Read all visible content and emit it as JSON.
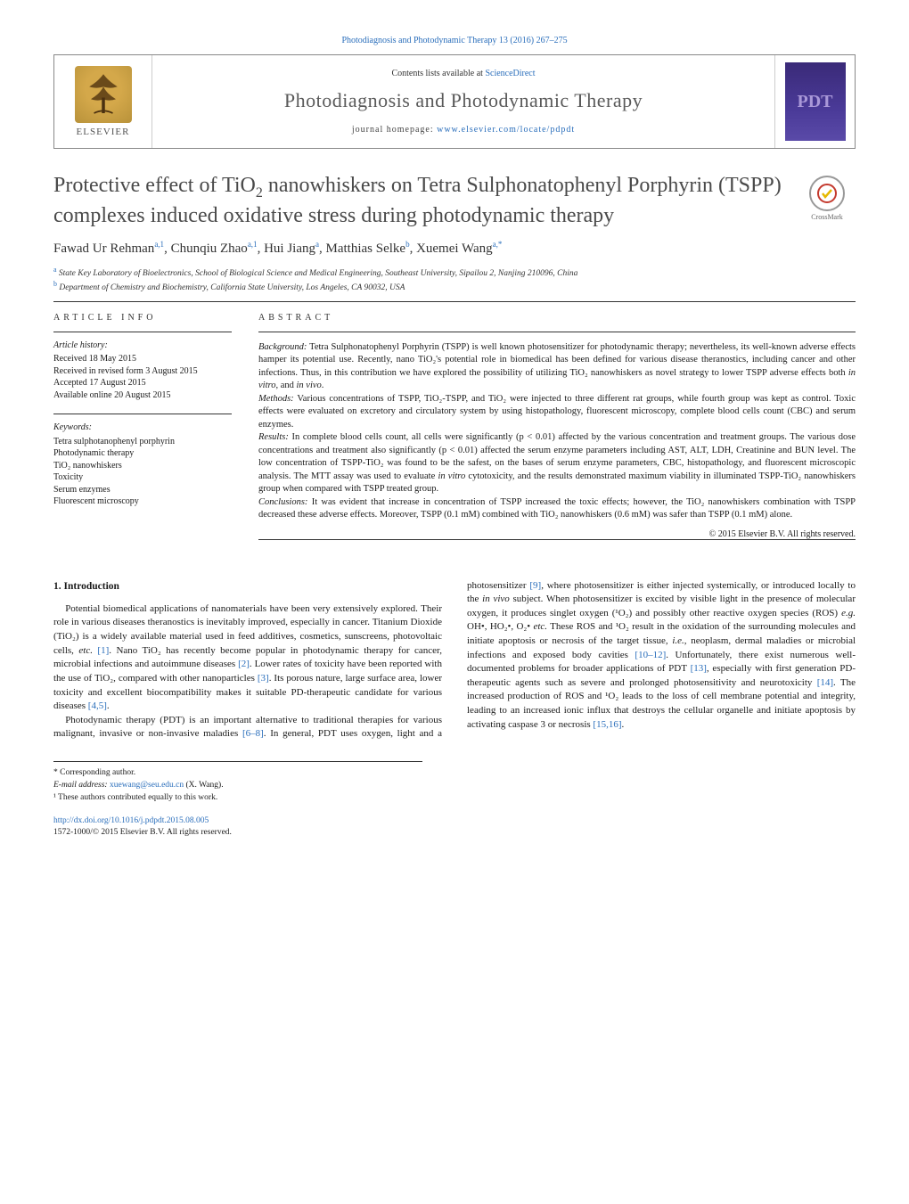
{
  "colors": {
    "link": "#2a6ebb",
    "title_gray": "#4a4a4a",
    "body_text": "#1a1a1a",
    "rule": "#333333",
    "elsevier_gold_a": "#d4a84a",
    "elsevier_gold_b": "#b8923a",
    "cover_purple_a": "#3a2a78",
    "cover_purple_b": "#5a4aa8",
    "masthead_border": "#888888"
  },
  "top_citation": "Photodiagnosis and Photodynamic Therapy 13 (2016) 267–275",
  "masthead": {
    "publisher": "ELSEVIER",
    "contents_prefix": "Contents lists available at ",
    "contents_link_text": "ScienceDirect",
    "journal_title": "Photodiagnosis and Photodynamic Therapy",
    "homepage_prefix": "journal homepage: ",
    "homepage_link_text": "www.elsevier.com/locate/pdpdt",
    "cover_letters": "PDT"
  },
  "article": {
    "title_html": "Protective effect of TiO<sub>2</sub> nanowhiskers on Tetra Sulphonatophenyl Porphyrin (TSPP) complexes induced oxidative stress during photodynamic therapy",
    "crossmark_label": "CrossMark",
    "authors_html": "Fawad Ur Rehman<sup>a,1</sup>, Chunqiu Zhao<sup>a,1</sup>, Hui Jiang<sup>a</sup>, Matthias Selke<sup>b</sup>, Xuemei Wang<sup>a,*</sup>",
    "affiliations": [
      {
        "tag": "a",
        "text": "State Key Laboratory of Bioelectronics, School of Biological Science and Medical Engineering, Southeast University, Sipailou 2, Nanjing 210096, China"
      },
      {
        "tag": "b",
        "text": "Department of Chemistry and Biochemistry, California State University, Los Angeles, CA 90032, USA"
      }
    ]
  },
  "info": {
    "heading": "article info",
    "history_label": "Article history:",
    "history": [
      "Received 18 May 2015",
      "Received in revised form 3 August 2015",
      "Accepted 17 August 2015",
      "Available online 20 August 2015"
    ],
    "keywords_label": "Keywords:",
    "keywords": [
      "Tetra sulphotanophenyl porphyrin",
      "Photodynamic therapy",
      "TiO₂ nanowhiskers",
      "Toxicity",
      "Serum enzymes",
      "Fluorescent microscopy"
    ]
  },
  "abstract": {
    "heading": "abstract",
    "background_label": "Background:",
    "background_text": "Tetra Sulphonatophenyl Porphyrin (TSPP) is well known photosensitizer for photodynamic therapy; nevertheless, its well-known adverse effects hamper its potential use. Recently, nano TiO₂'s potential role in biomedical has been defined for various disease theranostics, including cancer and other infections. Thus, in this contribution we have explored the possibility of utilizing TiO₂ nanowhiskers as novel strategy to lower TSPP adverse effects both in vitro, and in vivo.",
    "methods_label": "Methods:",
    "methods_text": "Various concentrations of TSPP, TiO₂-TSPP, and TiO₂ were injected to three different rat groups, while fourth group was kept as control. Toxic effects were evaluated on excretory and circulatory system by using histopathology, fluorescent microscopy, complete blood cells count (CBC) and serum enzymes.",
    "results_label": "Results:",
    "results_text": "In complete blood cells count, all cells were significantly (p < 0.01) affected by the various concentration and treatment groups. The various dose concentrations and treatment also significantly (p < 0.01) affected the serum enzyme parameters including AST, ALT, LDH, Creatinine and BUN level. The low concentration of TSPP-TiO₂ was found to be the safest, on the bases of serum enzyme parameters, CBC, histopathology, and fluorescent microscopic analysis. The MTT assay was used to evaluate in vitro cytotoxicity, and the results demonstrated maximum viability in illuminated TSPP-TiO₂ nanowhiskers group when compared with TSPP treated group.",
    "conclusions_label": "Conclusions:",
    "conclusions_text": "It was evident that increase in concentration of TSPP increased the toxic effects; however, the TiO₂ nanowhiskers combination with TSPP decreased these adverse effects. Moreover, TSPP (0.1 mM) combined with TiO₂ nanowhiskers (0.6 mM) was safer than TSPP (0.1 mM) alone.",
    "copyright": "© 2015 Elsevier B.V. All rights reserved."
  },
  "body": {
    "section_heading": "1.  Introduction",
    "para1": "Potential biomedical applications of nanomaterials have been very extensively explored. Their role in various diseases theranostics is inevitably improved, especially in cancer. Titanium Dioxide (TiO₂) is a widely available material used in feed additives, cosmetics, sunscreens, photovoltaic cells, etc. [1]. Nano TiO₂ has recently become popular in photodynamic therapy for cancer, microbial infections and autoimmune diseases [2]. Lower rates of toxicity have been reported with the use of TiO₂, compared with other nanoparticles [3]. Its porous nature, large surface area, lower toxicity and excellent biocompatibility makes it suitable PD-therapeutic candidate for various diseases [4,5].",
    "para2": "Photodynamic therapy (PDT) is an important alternative to traditional therapies for various malignant, invasive or non-invasive maladies [6–8]. In general, PDT uses oxygen, light and a photosensitizer [9], where photosensitizer is either injected systemically, or introduced locally to the in vivo subject. When photosensitizer is excited by visible light in the presence of molecular oxygen, it produces singlet oxygen (¹O₂) and possibly other reactive oxygen species (ROS) e.g. OH•, HO₂•, O₂• etc. These ROS and ¹O₂ result in the oxidation of the surrounding molecules and initiate apoptosis or necrosis of the target tissue, i.e., neoplasm, dermal maladies or microbial infections and exposed body cavities [10–12]. Unfortunately, there exist numerous well-documented problems for broader applications of PDT [13], especially with first generation PD-therapeutic agents such as severe and prolonged photosensitivity and neurotoxicity [14]. The increased production of ROS and ¹O₂ leads to the loss of cell membrane potential and integrity, leading to an increased ionic influx that destroys the cellular organelle and initiate apoptosis by activating caspase 3 or necrosis [15,16]."
  },
  "footnotes": {
    "corresponding": "* Corresponding author.",
    "email_label": "E-mail address:",
    "email": "xuewang@seu.edu.cn",
    "email_tail": " (X. Wang).",
    "equal": "¹ These authors contributed equally to this work."
  },
  "footer": {
    "doi": "http://dx.doi.org/10.1016/j.pdpdt.2015.08.005",
    "issn_line": "1572-1000/© 2015 Elsevier B.V. All rights reserved."
  }
}
